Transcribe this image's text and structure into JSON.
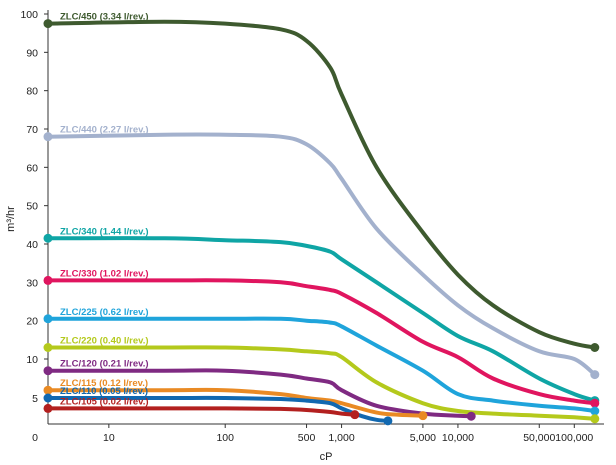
{
  "chart_data": {
    "type": "line",
    "title": "",
    "xlabel": "cP",
    "ylabel": "m³/hr",
    "x_scale": "log",
    "xlim": [
      3,
      180000
    ],
    "ylim": [
      0,
      100
    ],
    "grid": false,
    "x_ticks": [
      {
        "value": 10,
        "label": "10"
      },
      {
        "value": 100,
        "label": "100"
      },
      {
        "value": 500,
        "label": "500"
      },
      {
        "value": 1000,
        "label": "1,000"
      },
      {
        "value": 5000,
        "label": "5,000"
      },
      {
        "value": 10000,
        "label": "10,000"
      },
      {
        "value": 50000,
        "label": "50,000"
      },
      {
        "value": 100000,
        "label": "100,000"
      }
    ],
    "origin_label": "0",
    "y_ticks": [
      {
        "value": 5,
        "label": "5"
      },
      {
        "value": 10,
        "label": "10"
      },
      {
        "value": 20,
        "label": "20"
      },
      {
        "value": 30,
        "label": "30"
      },
      {
        "value": 40,
        "label": "40"
      },
      {
        "value": 50,
        "label": "50"
      },
      {
        "value": 60,
        "label": "60"
      },
      {
        "value": 70,
        "label": "70"
      },
      {
        "value": 80,
        "label": "80"
      },
      {
        "value": 90,
        "label": "90"
      },
      {
        "value": 100,
        "label": "100"
      }
    ],
    "series": [
      {
        "name": "ZLC/450 (3.34 l/rev.)",
        "color": "#3e5a2f",
        "x": [
          3,
          30,
          100,
          300,
          500,
          800,
          1000,
          2000,
          5000,
          10000,
          20000,
          50000,
          100000,
          150000
        ],
        "y": [
          97.5,
          98,
          97.5,
          96,
          93,
          86,
          79,
          60,
          43,
          32,
          24,
          17,
          14,
          13
        ]
      },
      {
        "name": "ZLC/440 (2.27 l/rev.)",
        "color": "#a3b1cd",
        "x": [
          3,
          30,
          100,
          300,
          500,
          800,
          1000,
          2000,
          5000,
          10000,
          20000,
          50000,
          100000,
          150000
        ],
        "y": [
          68,
          68.5,
          68.5,
          68,
          66,
          61,
          57,
          44,
          32,
          24,
          18,
          12,
          10,
          8
        ]
      },
      {
        "name": "ZLC/340 (1.44 l/rev.)",
        "color": "#0fa5a5",
        "x": [
          3,
          30,
          100,
          300,
          500,
          800,
          1000,
          2000,
          5000,
          10000,
          20000,
          50000,
          100000,
          150000
        ],
        "y": [
          41.5,
          41.5,
          41,
          40.5,
          39.5,
          38,
          36,
          30,
          22,
          16,
          12,
          7.5,
          5.5,
          4.5
        ]
      },
      {
        "name": "ZLC/330 (1.02 l/rev.)",
        "color": "#e0155f",
        "x": [
          3,
          30,
          100,
          300,
          500,
          800,
          1000,
          2000,
          5000,
          10000,
          20000,
          50000,
          100000,
          150000
        ],
        "y": [
          30.5,
          30.5,
          30.5,
          30,
          29,
          28,
          27,
          22,
          14.5,
          10.5,
          7.5,
          5.5,
          4.5,
          4
        ]
      },
      {
        "name": "ZLC/225 (0.62 l/rev.)",
        "color": "#1fa4db",
        "x": [
          3,
          30,
          100,
          300,
          500,
          800,
          1000,
          2000,
          5000,
          10000,
          20000,
          50000,
          100000,
          150000
        ],
        "y": [
          20.5,
          20.5,
          20.5,
          20.5,
          20,
          19.5,
          18.5,
          13.5,
          8.5,
          5.5,
          4.5,
          3.5,
          3,
          2.5
        ]
      },
      {
        "name": "ZLC/220 (0.40 l/rev.)",
        "color": "#b4c91c",
        "x": [
          3,
          30,
          100,
          300,
          500,
          800,
          1000,
          2000,
          5000,
          10000,
          20000,
          50000,
          100000,
          150000
        ],
        "y": [
          13,
          13,
          13,
          12.5,
          12,
          11.5,
          10.5,
          7,
          4,
          2.5,
          2,
          1.6,
          1.3,
          1
        ]
      },
      {
        "name": "ZLC/120 (0.21 l/rev.)",
        "color": "#7f2a82",
        "x": [
          3,
          30,
          100,
          300,
          500,
          800,
          1000,
          2000,
          5000,
          10000,
          13000
        ],
        "y": [
          8.5,
          8.5,
          8.5,
          8,
          7.5,
          7,
          6,
          3.5,
          2,
          1.6,
          1.5
        ]
      },
      {
        "name": "ZLC/115 (0.12 l/rev.)",
        "color": "#e98a24",
        "x": [
          3,
          30,
          100,
          300,
          500,
          800,
          1000,
          2000,
          3000,
          5000
        ],
        "y": [
          6,
          6,
          6,
          5.5,
          5,
          4.5,
          4,
          2.2,
          1.8,
          1.6
        ]
      },
      {
        "name": "ZLC/110 (0.05 l/rev.)",
        "color": "#1168b0",
        "x": [
          3,
          30,
          100,
          300,
          500,
          800,
          1000,
          1500,
          2000,
          2500
        ],
        "y": [
          5,
          5,
          5,
          4.8,
          4.5,
          4,
          3,
          1.5,
          0.8,
          0.6
        ]
      },
      {
        "name": "ZLC/105 (0.02 l/rev.)",
        "color": "#b3201f",
        "x": [
          3,
          30,
          100,
          300,
          500,
          800,
          1000,
          1300
        ],
        "y": [
          3,
          3,
          3,
          2.9,
          2.7,
          2.3,
          2,
          1.8
        ]
      }
    ]
  }
}
